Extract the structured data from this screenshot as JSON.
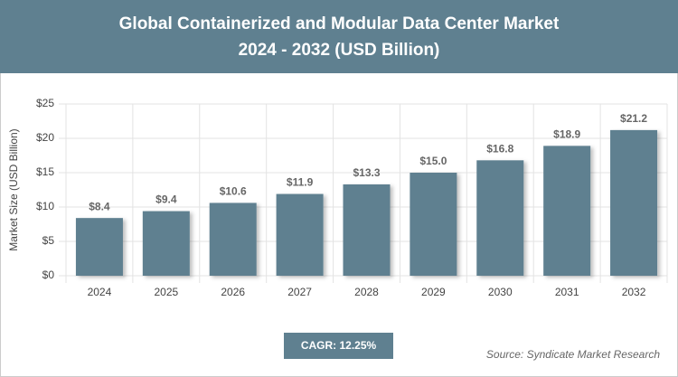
{
  "chart_data": {
    "type": "bar",
    "title": "Global Containerized and Modular Data Center Market",
    "subtitle": "2024 - 2032 (USD Billion)",
    "y_label": "Market Size (USD Billion)",
    "categories": [
      "2024",
      "2025",
      "2026",
      "2027",
      "2028",
      "2029",
      "2030",
      "2031",
      "2032"
    ],
    "values": [
      8.4,
      9.4,
      10.6,
      11.9,
      13.3,
      15.0,
      16.8,
      18.9,
      21.2
    ],
    "value_labels": [
      "$8.4",
      "$9.4",
      "$10.6",
      "$11.9",
      "$13.3",
      "$15.0",
      "$16.8",
      "$18.9",
      "$21.2"
    ],
    "color": "#5f8090",
    "ylim": [
      0,
      25
    ],
    "yticks": [
      {
        "value": 0,
        "label": "$0"
      },
      {
        "value": 5,
        "label": "$5"
      },
      {
        "value": 10,
        "label": "$10"
      },
      {
        "value": 15,
        "label": "$15"
      },
      {
        "value": 20,
        "label": "$20"
      },
      {
        "value": 25,
        "label": "$25"
      }
    ],
    "grid": true,
    "annotations": {
      "cagr": "CAGR: 12.25%",
      "source": "Source: Syndicate Market Research"
    }
  }
}
